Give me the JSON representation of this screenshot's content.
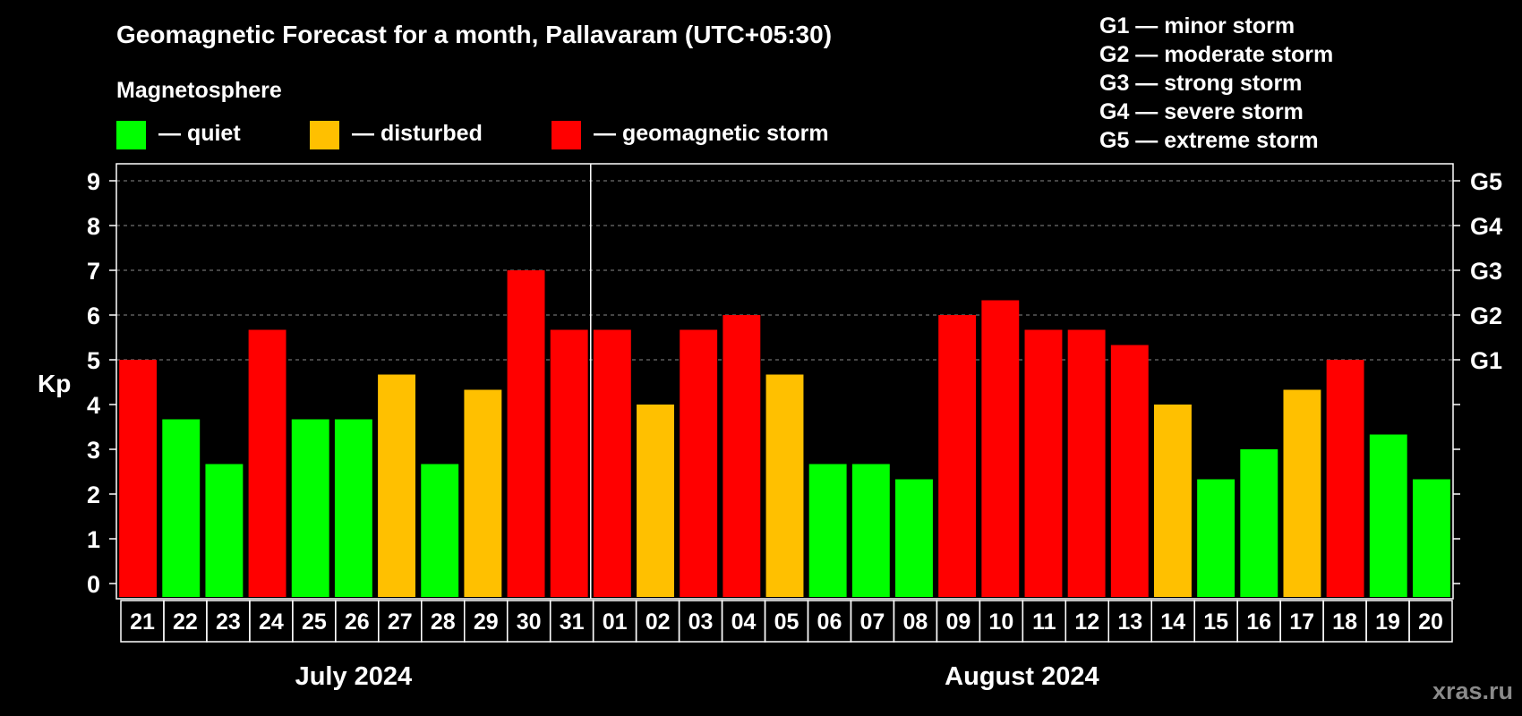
{
  "colors": {
    "quiet": "#00ff00",
    "disturbed": "#ffc000",
    "storm": "#ff0000",
    "background": "#000000",
    "axis": "#ffffff",
    "grid": "#8a8a8a"
  },
  "chart_data": {
    "type": "bar",
    "title": "Geomagnetic Forecast for a month, Pallavaram (UTC+05:30)",
    "ylabel": "Kp",
    "ylim": [
      0,
      9
    ],
    "yticks": [
      "0",
      "1",
      "2",
      "3",
      "4",
      "5",
      "6",
      "7",
      "8",
      "9"
    ],
    "grid": true,
    "legend_title": "Magnetosphere",
    "legend": [
      {
        "key": "quiet",
        "label": "— quiet"
      },
      {
        "key": "disturbed",
        "label": "— disturbed"
      },
      {
        "key": "storm",
        "label": "— geomagnetic storm"
      }
    ],
    "g_legend": [
      "G1 — minor storm",
      "G2 — moderate storm",
      "G3 — strong storm",
      "G4 — severe storm",
      "G5 — extreme storm"
    ],
    "g_scale": [
      {
        "label": "G1",
        "kp": 5
      },
      {
        "label": "G2",
        "kp": 6
      },
      {
        "label": "G3",
        "kp": 7
      },
      {
        "label": "G4",
        "kp": 8
      },
      {
        "label": "G5",
        "kp": 9
      }
    ],
    "categories": [
      "21",
      "22",
      "23",
      "24",
      "25",
      "26",
      "27",
      "28",
      "29",
      "30",
      "31",
      "01",
      "02",
      "03",
      "04",
      "05",
      "06",
      "07",
      "08",
      "09",
      "10",
      "11",
      "12",
      "13",
      "14",
      "15",
      "16",
      "17",
      "18",
      "19",
      "20"
    ],
    "values": [
      5,
      3.67,
      2.67,
      5.67,
      3.67,
      3.67,
      4.67,
      2.67,
      4.33,
      7,
      5.67,
      5.67,
      4,
      5.67,
      6,
      4.67,
      2.67,
      2.67,
      2.33,
      6,
      6.33,
      5.67,
      5.67,
      5.33,
      4,
      2.33,
      3,
      4.33,
      5,
      3.33,
      2.33
    ],
    "status": [
      "storm",
      "quiet",
      "quiet",
      "storm",
      "quiet",
      "quiet",
      "disturbed",
      "quiet",
      "disturbed",
      "storm",
      "storm",
      "storm",
      "disturbed",
      "storm",
      "storm",
      "disturbed",
      "quiet",
      "quiet",
      "quiet",
      "storm",
      "storm",
      "storm",
      "storm",
      "storm",
      "disturbed",
      "quiet",
      "quiet",
      "disturbed",
      "storm",
      "quiet",
      "quiet"
    ],
    "months": [
      {
        "label": "July 2024",
        "start": 0,
        "end": 10
      },
      {
        "label": "August 2024",
        "start": 11,
        "end": 30
      }
    ]
  },
  "watermark": "xras.ru"
}
